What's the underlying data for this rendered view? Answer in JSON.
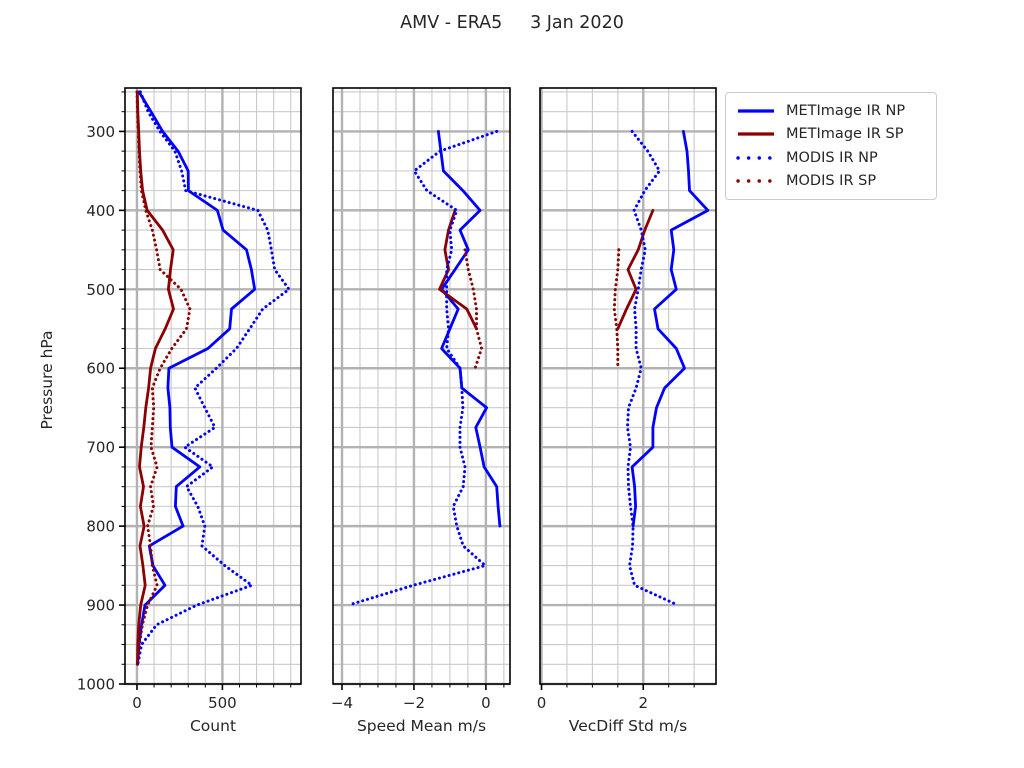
{
  "chart_data": {
    "type": "line",
    "title": "AMV - ERA5     3 Jan 2020",
    "ylabel": "Pressure hPa",
    "colors": {
      "metimage": "#0000ff",
      "modis_sp": "#8b0000",
      "major_grid": "#b2b2b2",
      "minor_grid": "#c9c9c9",
      "spine": "#000000"
    },
    "y_axis": {
      "range": [
        245,
        1000
      ],
      "inverted": true,
      "major_ticks": [
        300,
        400,
        500,
        600,
        700,
        800,
        900,
        1000
      ],
      "minor_step": 25
    },
    "legend": {
      "entries": [
        {
          "label": "METImage IR NP",
          "color": "#0000ff",
          "line": "solid"
        },
        {
          "label": "METImage IR SP",
          "color": "#8b0000",
          "line": "solid"
        },
        {
          "label": "MODIS IR NP",
          "color": "#0000ff",
          "line": "dotted"
        },
        {
          "label": "MODIS IR SP",
          "color": "#8b0000",
          "line": "dotted"
        }
      ]
    },
    "panels": [
      {
        "id": "count",
        "xlabel": "Count",
        "xlim": [
          -70,
          960
        ],
        "x_ticks": [
          {
            "v": 0,
            "label": "0"
          },
          {
            "v": 500,
            "label": "500"
          }
        ],
        "x_minor_step": 100,
        "series": [
          {
            "name": "METImage IR NP",
            "color": "#0000ff",
            "line": "solid",
            "pressure": [
              250,
              275,
              300,
              325,
              350,
              375,
              400,
              425,
              450,
              475,
              500,
              525,
              550,
              575,
              600,
              625,
              650,
              675,
              700,
              725,
              750,
              775,
              800,
              825,
              850,
              875,
              900,
              925,
              950,
              975
            ],
            "values": [
              12,
              82,
              150,
              241,
              300,
              301,
              471,
              504,
              641,
              670,
              689,
              553,
              543,
              415,
              187,
              181,
              193,
              195,
              205,
              368,
              230,
              225,
              270,
              72,
              93,
              164,
              47,
              27,
              12,
              4
            ]
          },
          {
            "name": "METImage IR SP",
            "color": "#8b0000",
            "line": "solid",
            "pressure": [
              250,
              275,
              300,
              325,
              350,
              375,
              400,
              425,
              450,
              475,
              500,
              525,
              550,
              575,
              600,
              625,
              650,
              675,
              700,
              725,
              750,
              775,
              800,
              825,
              850,
              875,
              900,
              925,
              950,
              975
            ],
            "values": [
              2,
              5,
              10,
              15,
              22,
              33,
              60,
              150,
              212,
              196,
              184,
              214,
              165,
              108,
              80,
              68,
              52,
              40,
              25,
              15,
              38,
              20,
              42,
              18,
              35,
              48,
              22,
              10,
              5,
              3
            ]
          },
          {
            "name": "MODIS IR NP",
            "color": "#0000ff",
            "line": "dotted",
            "pressure": [
              250,
              275,
              300,
              325,
              350,
              375,
              400,
              425,
              450,
              475,
              500,
              525,
              550,
              575,
              600,
              625,
              650,
              675,
              700,
              725,
              750,
              775,
              800,
              825,
              850,
              875,
              900,
              925,
              950,
              975
            ],
            "values": [
              20,
              65,
              134,
              222,
              261,
              285,
              707,
              765,
              787,
              806,
              890,
              736,
              660,
              582,
              465,
              339,
              397,
              456,
              280,
              444,
              290,
              356,
              397,
              380,
              514,
              672,
              350,
              115,
              27,
              5
            ]
          },
          {
            "name": "MODIS IR SP",
            "color": "#8b0000",
            "line": "dotted",
            "pressure": [
              250,
              275,
              300,
              325,
              350,
              375,
              400,
              425,
              450,
              475,
              500,
              525,
              550,
              575,
              600,
              625,
              650,
              675,
              700,
              725,
              750,
              775,
              800,
              825,
              850,
              875,
              900,
              925,
              950,
              975
            ],
            "values": [
              0,
              3,
              8,
              12,
              18,
              26,
              52,
              90,
              115,
              136,
              258,
              310,
              290,
              204,
              136,
              90,
              98,
              90,
              82,
              118,
              80,
              96,
              62,
              80,
              90,
              118,
              62,
              32,
              14,
              2
            ]
          }
        ]
      },
      {
        "id": "speed_mean",
        "xlabel": "Speed Mean m/s",
        "xlim": [
          -4.25,
          0.67
        ],
        "x_ticks": [
          {
            "v": -4,
            "label": "−4"
          },
          {
            "v": -2,
            "label": "−2"
          },
          {
            "v": 0,
            "label": "0"
          }
        ],
        "x_minor_step": 0.5,
        "series": [
          {
            "name": "METImage IR NP",
            "color": "#0000ff",
            "line": "solid",
            "pressure": [
              300,
              325,
              350,
              375,
              400,
              425,
              450,
              475,
              500,
              525,
              550,
              575,
              600,
              625,
              650,
              675,
              700,
              725,
              750,
              775,
              800
            ],
            "values": [
              -1.32,
              -1.25,
              -1.18,
              -0.64,
              -0.16,
              -0.72,
              -0.49,
              -0.86,
              -1.23,
              -0.77,
              -1.0,
              -1.23,
              -0.72,
              -0.67,
              0.02,
              -0.28,
              -0.16,
              -0.05,
              0.3,
              0.34,
              0.39
            ]
          },
          {
            "name": "METImage IR SP",
            "color": "#8b0000",
            "line": "solid",
            "pressure": [
              400,
              425,
              450,
              475,
              500,
              525,
              550
            ],
            "values": [
              -0.86,
              -1.04,
              -1.14,
              -1.04,
              -1.29,
              -0.53,
              -0.26
            ]
          },
          {
            "name": "MODIS IR NP",
            "color": "#0000ff",
            "line": "dotted",
            "pressure": [
              300,
              325,
              350,
              375,
              400,
              425,
              450,
              475,
              500,
              525,
              550,
              575,
              600,
              625,
              650,
              675,
              700,
              725,
              750,
              775,
              800,
              825,
              850,
              875,
              900
            ],
            "values": [
              0.3,
              -1.28,
              -1.99,
              -1.64,
              -0.81,
              -1.0,
              -0.95,
              -1.09,
              -1.09,
              -1.09,
              -1.04,
              -1.09,
              -0.72,
              -0.67,
              -0.64,
              -0.72,
              -0.72,
              -0.58,
              -0.63,
              -0.91,
              -0.81,
              -0.63,
              -0.02,
              -2.02,
              -3.82
            ]
          },
          {
            "name": "MODIS IR SP",
            "color": "#8b0000",
            "line": "dotted",
            "pressure": [
              450,
              475,
              500,
              525,
              550,
              575,
              600
            ],
            "values": [
              -0.58,
              -0.49,
              -0.35,
              -0.26,
              -0.26,
              -0.12,
              -0.3
            ]
          }
        ]
      },
      {
        "id": "vecdiff_std",
        "xlabel": "VecDiff Std m/s",
        "xlim": [
          -0.03,
          3.43
        ],
        "x_ticks": [
          {
            "v": 0,
            "label": "0"
          },
          {
            "v": 2,
            "label": "2"
          }
        ],
        "x_minor_step": 0.5,
        "series": [
          {
            "name": "METImage IR NP",
            "color": "#0000ff",
            "line": "solid",
            "pressure": [
              300,
              325,
              350,
              375,
              400,
              425,
              450,
              475,
              500,
              525,
              550,
              575,
              600,
              625,
              650,
              675,
              700,
              725,
              750,
              775,
              800
            ],
            "values": [
              2.79,
              2.86,
              2.89,
              2.91,
              3.27,
              2.55,
              2.6,
              2.55,
              2.65,
              2.22,
              2.29,
              2.65,
              2.81,
              2.42,
              2.26,
              2.19,
              2.19,
              1.78,
              1.83,
              1.85,
              1.8
            ]
          },
          {
            "name": "METImage IR SP",
            "color": "#8b0000",
            "line": "solid",
            "pressure": [
              400,
              425,
              450,
              475,
              500,
              525,
              550
            ],
            "values": [
              2.19,
              2.03,
              1.9,
              1.7,
              1.86,
              1.67,
              1.5
            ]
          },
          {
            "name": "MODIS IR NP",
            "color": "#0000ff",
            "line": "dotted",
            "pressure": [
              300,
              325,
              350,
              375,
              400,
              425,
              450,
              475,
              500,
              525,
              550,
              575,
              600,
              625,
              650,
              675,
              700,
              725,
              750,
              775,
              800,
              825,
              850,
              875,
              900
            ],
            "values": [
              1.78,
              2.09,
              2.32,
              2.03,
              1.82,
              1.96,
              2.04,
              1.96,
              1.9,
              1.83,
              1.86,
              1.86,
              1.96,
              1.86,
              1.71,
              1.69,
              1.75,
              1.7,
              1.71,
              1.75,
              1.8,
              1.79,
              1.73,
              1.83,
              2.68
            ]
          },
          {
            "name": "MODIS IR SP",
            "color": "#8b0000",
            "line": "dotted",
            "pressure": [
              450,
              475,
              500,
              525,
              550,
              575,
              600
            ],
            "values": [
              1.52,
              1.5,
              1.45,
              1.43,
              1.48,
              1.5,
              1.5
            ]
          }
        ]
      }
    ]
  }
}
